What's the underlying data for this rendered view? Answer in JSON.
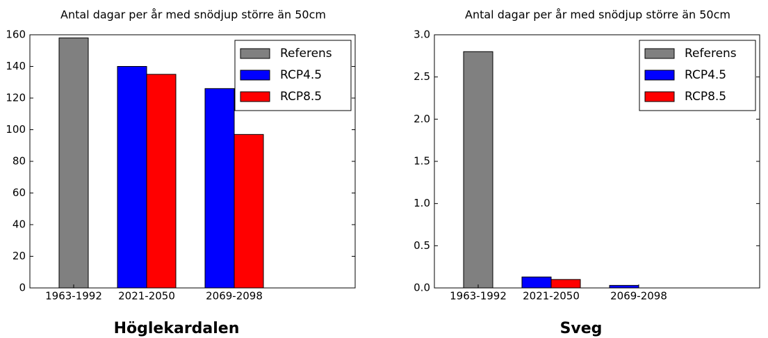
{
  "chart_data": [
    {
      "type": "bar",
      "title": "Antal dagar per år med snödjup större än 50cm",
      "subtitle": "Höglekardalen",
      "categories": [
        "1963-1992",
        "2021-2050",
        "2069-2098"
      ],
      "series": [
        {
          "name": "Referens",
          "color": "#808080",
          "values": [
            158,
            null,
            null
          ]
        },
        {
          "name": "RCP4.5",
          "color": "#0000ff",
          "values": [
            null,
            140,
            126
          ]
        },
        {
          "name": "RCP8.5",
          "color": "#ff0000",
          "values": [
            null,
            135,
            97
          ]
        }
      ],
      "ylim": [
        0,
        160
      ],
      "yticks": [
        0,
        20,
        40,
        60,
        80,
        100,
        120,
        140,
        160
      ],
      "legend": "upper right"
    },
    {
      "type": "bar",
      "title": "Antal dagar per år med snödjup större än 50cm",
      "subtitle": "Sveg",
      "categories": [
        "1963-1992",
        "2021-2050",
        "2069-2098"
      ],
      "series": [
        {
          "name": "Referens",
          "color": "#808080",
          "values": [
            2.8,
            null,
            null
          ]
        },
        {
          "name": "RCP4.5",
          "color": "#0000ff",
          "values": [
            null,
            0.13,
            0.03
          ]
        },
        {
          "name": "RCP8.5",
          "color": "#ff0000",
          "values": [
            null,
            0.1,
            0
          ]
        }
      ],
      "ylim": [
        0,
        3.0
      ],
      "yticks": [
        {
          "value": 0,
          "label": "0.0"
        },
        0.5,
        {
          "value": 1,
          "label": "1.0"
        },
        1.5,
        {
          "value": 2,
          "label": "2.0"
        },
        2.5,
        {
          "value": 3,
          "label": "3.0"
        }
      ],
      "legend": "upper right"
    }
  ]
}
